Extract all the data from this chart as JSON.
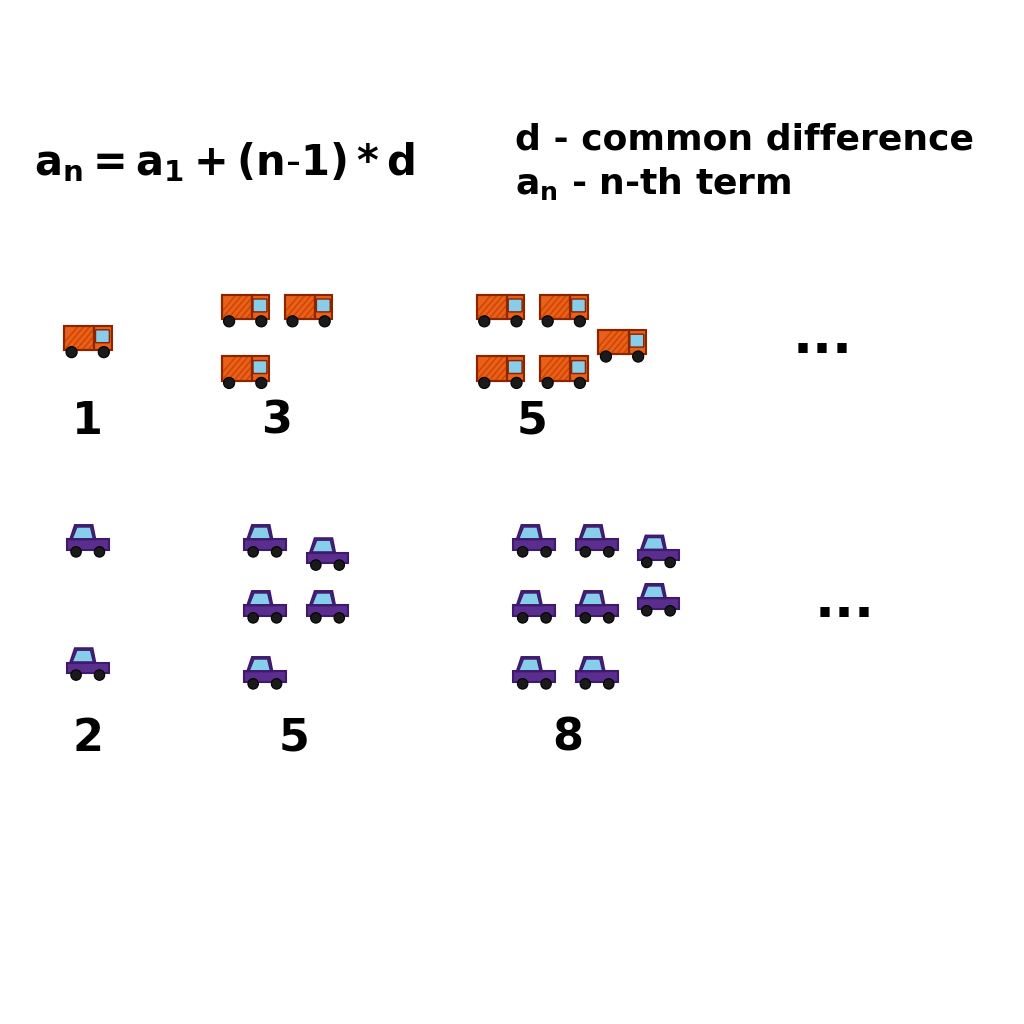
{
  "truck_body_color": "#E8601A",
  "truck_cargo_stripe_color": "#CC4400",
  "truck_window_color": "#87CEEB",
  "truck_outline_color": "#8B2500",
  "truck_wheel_color": "#1a1a1a",
  "car_body_color": "#5B2D8E",
  "car_window_color": "#87CEEB",
  "car_outline_color": "#3D1A6B",
  "car_wheel_color": "#1a1a1a",
  "truck_counts": [
    1,
    3,
    5
  ],
  "car_counts": [
    2,
    5,
    8
  ],
  "truck_labels": [
    "1",
    "3",
    "5"
  ],
  "car_labels": [
    "2",
    "5",
    "8"
  ],
  "background_color": "#ffffff"
}
